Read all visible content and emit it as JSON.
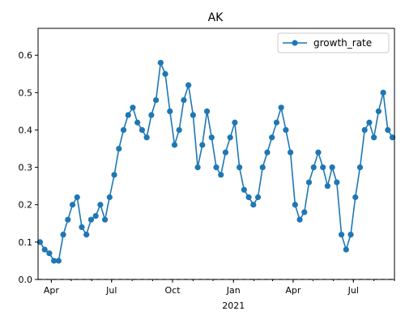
{
  "chart_data": {
    "type": "line",
    "title": "AK",
    "xlabel": "",
    "ylabel": "",
    "x_range": [
      "2020-03-12",
      "2021-09-01"
    ],
    "ylim": [
      0,
      0.672
    ],
    "y_ticks": [
      0.0,
      0.1,
      0.2,
      0.3,
      0.4,
      0.5,
      0.6
    ],
    "x_ticks": [
      {
        "date": "2020-04-01",
        "label": "Apr"
      },
      {
        "date": "2020-07-01",
        "label": "Jul"
      },
      {
        "date": "2020-10-01",
        "label": "Oct"
      },
      {
        "date": "2021-01-01",
        "label": "Jan"
      },
      {
        "date": "2021-04-01",
        "label": "Apr"
      },
      {
        "date": "2021-07-01",
        "label": "Jul"
      }
    ],
    "x_sub_label": "2021",
    "grid": false,
    "legend_position": "top-right",
    "baseline": {
      "y": 0,
      "style": "dashed"
    },
    "series": [
      {
        "name": "growth_rate",
        "color": "#1f77b4",
        "marker": "circle",
        "points": [
          [
            "2020-03-15",
            0.1
          ],
          [
            "2020-03-22",
            0.08
          ],
          [
            "2020-03-29",
            0.07
          ],
          [
            "2020-04-05",
            0.05
          ],
          [
            "2020-04-12",
            0.05
          ],
          [
            "2020-04-19",
            0.12
          ],
          [
            "2020-04-26",
            0.16
          ],
          [
            "2020-05-03",
            0.2
          ],
          [
            "2020-05-10",
            0.22
          ],
          [
            "2020-05-17",
            0.14
          ],
          [
            "2020-05-24",
            0.12
          ],
          [
            "2020-05-31",
            0.16
          ],
          [
            "2020-06-07",
            0.17
          ],
          [
            "2020-06-14",
            0.2
          ],
          [
            "2020-06-21",
            0.16
          ],
          [
            "2020-06-28",
            0.22
          ],
          [
            "2020-07-05",
            0.28
          ],
          [
            "2020-07-12",
            0.35
          ],
          [
            "2020-07-19",
            0.4
          ],
          [
            "2020-07-26",
            0.44
          ],
          [
            "2020-08-02",
            0.46
          ],
          [
            "2020-08-09",
            0.42
          ],
          [
            "2020-08-16",
            0.4
          ],
          [
            "2020-08-23",
            0.38
          ],
          [
            "2020-08-30",
            0.44
          ],
          [
            "2020-09-06",
            0.48
          ],
          [
            "2020-09-13",
            0.58
          ],
          [
            "2020-09-20",
            0.55
          ],
          [
            "2020-09-27",
            0.45
          ],
          [
            "2020-10-04",
            0.36
          ],
          [
            "2020-10-11",
            0.4
          ],
          [
            "2020-10-18",
            0.48
          ],
          [
            "2020-10-25",
            0.52
          ],
          [
            "2020-11-01",
            0.44
          ],
          [
            "2020-11-08",
            0.3
          ],
          [
            "2020-11-15",
            0.36
          ],
          [
            "2020-11-22",
            0.45
          ],
          [
            "2020-11-29",
            0.38
          ],
          [
            "2020-12-06",
            0.3
          ],
          [
            "2020-12-13",
            0.28
          ],
          [
            "2020-12-20",
            0.34
          ],
          [
            "2020-12-27",
            0.38
          ],
          [
            "2021-01-03",
            0.42
          ],
          [
            "2021-01-10",
            0.3
          ],
          [
            "2021-01-17",
            0.24
          ],
          [
            "2021-01-24",
            0.22
          ],
          [
            "2021-01-31",
            0.2
          ],
          [
            "2021-02-07",
            0.22
          ],
          [
            "2021-02-14",
            0.3
          ],
          [
            "2021-02-21",
            0.34
          ],
          [
            "2021-02-28",
            0.38
          ],
          [
            "2021-03-07",
            0.42
          ],
          [
            "2021-03-14",
            0.46
          ],
          [
            "2021-03-21",
            0.4
          ],
          [
            "2021-03-28",
            0.34
          ],
          [
            "2021-04-04",
            0.2
          ],
          [
            "2021-04-11",
            0.16
          ],
          [
            "2021-04-18",
            0.18
          ],
          [
            "2021-04-25",
            0.26
          ],
          [
            "2021-05-02",
            0.3
          ],
          [
            "2021-05-09",
            0.34
          ],
          [
            "2021-05-16",
            0.3
          ],
          [
            "2021-05-23",
            0.25
          ],
          [
            "2021-05-30",
            0.3
          ],
          [
            "2021-06-06",
            0.26
          ],
          [
            "2021-06-13",
            0.12
          ],
          [
            "2021-06-20",
            0.08
          ],
          [
            "2021-06-27",
            0.12
          ],
          [
            "2021-07-04",
            0.22
          ],
          [
            "2021-07-11",
            0.3
          ],
          [
            "2021-07-18",
            0.4
          ],
          [
            "2021-07-25",
            0.42
          ],
          [
            "2021-08-01",
            0.38
          ],
          [
            "2021-08-08",
            0.45
          ],
          [
            "2021-08-15",
            0.5
          ],
          [
            "2021-08-22",
            0.4
          ],
          [
            "2021-08-29",
            0.38
          ]
        ]
      }
    ]
  }
}
